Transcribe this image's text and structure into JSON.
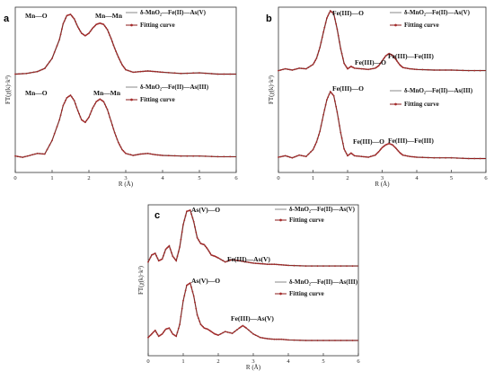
{
  "chart_data": [
    {
      "type": "line",
      "panel": "a",
      "xlabel": "R (Å)",
      "ylabel": "FT(χ(k)·k³)",
      "xlim": [
        0,
        6
      ],
      "xticks": [
        "0",
        "1",
        "2",
        "3",
        "4",
        "5",
        "6"
      ],
      "grid": false,
      "legend_position": "right",
      "curves": [
        {
          "legend": "δ-MnO₂—Fe(II)—As(V)",
          "annotations": [
            "Mn—O",
            "Mn—Mn"
          ],
          "x": [
            0,
            0.3,
            0.6,
            0.8,
            1.0,
            1.2,
            1.3,
            1.4,
            1.5,
            1.6,
            1.7,
            1.8,
            1.9,
            2.0,
            2.1,
            2.2,
            2.3,
            2.4,
            2.5,
            2.6,
            2.7,
            2.8,
            2.9,
            3.0,
            3.2,
            3.4,
            3.6,
            3.8,
            4.0,
            4.5,
            5.0,
            5.5,
            6.0
          ],
          "y": [
            0.05,
            0.06,
            0.09,
            0.14,
            0.3,
            0.6,
            0.85,
            0.98,
            1.0,
            0.93,
            0.8,
            0.7,
            0.66,
            0.7,
            0.78,
            0.84,
            0.86,
            0.84,
            0.76,
            0.62,
            0.46,
            0.32,
            0.2,
            0.12,
            0.08,
            0.09,
            0.1,
            0.09,
            0.08,
            0.06,
            0.07,
            0.05,
            0.05
          ]
        },
        {
          "legend": "δ-MnO₂—Fe(II)—As(III)",
          "annotations": [
            "Mn—O",
            "Mn—Mn"
          ],
          "x": [
            0,
            0.2,
            0.4,
            0.6,
            0.8,
            1.0,
            1.2,
            1.3,
            1.4,
            1.5,
            1.6,
            1.7,
            1.8,
            1.9,
            2.0,
            2.1,
            2.2,
            2.3,
            2.4,
            2.5,
            2.6,
            2.7,
            2.8,
            2.9,
            3.0,
            3.2,
            3.4,
            3.6,
            3.8,
            4.0,
            4.5,
            5.0,
            5.5,
            6.0
          ],
          "y": [
            0.06,
            0.04,
            0.07,
            0.1,
            0.09,
            0.3,
            0.62,
            0.84,
            0.96,
            1.0,
            0.92,
            0.76,
            0.62,
            0.58,
            0.66,
            0.8,
            0.9,
            0.94,
            0.9,
            0.78,
            0.6,
            0.42,
            0.27,
            0.16,
            0.1,
            0.07,
            0.09,
            0.1,
            0.08,
            0.07,
            0.06,
            0.06,
            0.05,
            0.05
          ]
        }
      ],
      "fit_legend": "Fitting curve"
    },
    {
      "type": "line",
      "panel": "b",
      "xlabel": "R (Å)",
      "ylabel": "FT(χ(k)·k³)",
      "xlim": [
        0,
        6
      ],
      "xticks": [
        "0",
        "1",
        "2",
        "3",
        "4",
        "5",
        "6"
      ],
      "grid": false,
      "legend_position": "top-right",
      "curves": [
        {
          "legend": "δ-MnO₂—Fe(II)—As(V)",
          "annotations": [
            "Fe(III)—O",
            "Fe(III)—O",
            "Fe(III)—Fe(III)"
          ],
          "x": [
            0,
            0.2,
            0.4,
            0.6,
            0.8,
            1.0,
            1.1,
            1.2,
            1.3,
            1.4,
            1.5,
            1.6,
            1.7,
            1.8,
            1.9,
            2.0,
            2.1,
            2.2,
            2.4,
            2.6,
            2.8,
            2.9,
            3.0,
            3.1,
            3.2,
            3.3,
            3.4,
            3.5,
            3.6,
            3.8,
            4.0,
            4.5,
            5.0,
            5.5,
            6.0
          ],
          "y": [
            0.02,
            0.05,
            0.03,
            0.06,
            0.05,
            0.12,
            0.22,
            0.4,
            0.65,
            0.88,
            1.0,
            0.95,
            0.7,
            0.38,
            0.14,
            0.05,
            0.09,
            0.06,
            0.05,
            0.04,
            0.06,
            0.1,
            0.18,
            0.26,
            0.3,
            0.27,
            0.2,
            0.12,
            0.07,
            0.05,
            0.04,
            0.03,
            0.03,
            0.02,
            0.02
          ]
        },
        {
          "legend": "δ-MnO₂—Fe(II)—As(III)",
          "annotations": [
            "Fe(III)—O",
            "Fe(III)—O",
            "Fe(III)—Fe(III)"
          ],
          "x": [
            0,
            0.2,
            0.4,
            0.6,
            0.8,
            1.0,
            1.1,
            1.2,
            1.3,
            1.4,
            1.5,
            1.6,
            1.7,
            1.8,
            1.9,
            2.0,
            2.1,
            2.2,
            2.4,
            2.6,
            2.8,
            2.9,
            3.0,
            3.1,
            3.2,
            3.3,
            3.4,
            3.5,
            3.6,
            3.8,
            4.0,
            4.5,
            5.0,
            5.5,
            6.0
          ],
          "y": [
            0.04,
            0.06,
            0.03,
            0.07,
            0.05,
            0.15,
            0.26,
            0.42,
            0.66,
            0.88,
            1.0,
            0.94,
            0.7,
            0.4,
            0.16,
            0.06,
            0.1,
            0.06,
            0.05,
            0.04,
            0.07,
            0.12,
            0.18,
            0.22,
            0.24,
            0.22,
            0.17,
            0.11,
            0.07,
            0.05,
            0.04,
            0.03,
            0.03,
            0.02,
            0.02
          ]
        }
      ],
      "fit_legend": "Fitting curve"
    },
    {
      "type": "line",
      "panel": "c",
      "xlabel": "R (Å)",
      "ylabel": "FT(χ(k)·k³)",
      "xlim": [
        0,
        6
      ],
      "xticks": [
        "0",
        "1",
        "2",
        "3",
        "4",
        "5",
        "6"
      ],
      "grid": false,
      "legend_position": "top-right",
      "curves": [
        {
          "legend": "δ-MnO₂—Fe(II)—As(V)",
          "annotations": [
            "As(V)—O",
            "Fe(III)—As(V)"
          ],
          "x": [
            0,
            0.1,
            0.2,
            0.3,
            0.4,
            0.5,
            0.6,
            0.7,
            0.8,
            0.9,
            1.0,
            1.1,
            1.2,
            1.3,
            1.4,
            1.5,
            1.6,
            1.7,
            1.8,
            1.9,
            2.0,
            2.2,
            2.4,
            2.6,
            2.8,
            3.0,
            3.2,
            3.4,
            3.6,
            3.8,
            4.0,
            4.5,
            5.0,
            5.5,
            6.0
          ],
          "y": [
            0.1,
            0.22,
            0.25,
            0.12,
            0.15,
            0.32,
            0.38,
            0.2,
            0.12,
            0.36,
            0.75,
            0.98,
            1.0,
            0.8,
            0.52,
            0.42,
            0.4,
            0.32,
            0.22,
            0.2,
            0.17,
            0.1,
            0.14,
            0.12,
            0.1,
            0.08,
            0.07,
            0.06,
            0.06,
            0.05,
            0.04,
            0.03,
            0.03,
            0.03,
            0.03
          ]
        },
        {
          "legend": "δ-MnO₂—Fe(II)—As(III)",
          "annotations": [
            "As(V)—O",
            "Fe(III)—As(V)"
          ],
          "x": [
            0,
            0.1,
            0.2,
            0.3,
            0.4,
            0.5,
            0.6,
            0.7,
            0.8,
            0.9,
            1.0,
            1.1,
            1.2,
            1.3,
            1.4,
            1.5,
            1.6,
            1.7,
            1.8,
            1.9,
            2.0,
            2.2,
            2.4,
            2.6,
            2.7,
            2.8,
            3.0,
            3.2,
            3.4,
            3.6,
            3.8,
            4.0,
            4.5,
            5.0,
            5.5,
            6.0
          ],
          "y": [
            0.08,
            0.14,
            0.2,
            0.1,
            0.14,
            0.22,
            0.24,
            0.14,
            0.1,
            0.3,
            0.7,
            0.96,
            1.0,
            0.78,
            0.46,
            0.3,
            0.24,
            0.22,
            0.18,
            0.14,
            0.12,
            0.18,
            0.15,
            0.24,
            0.28,
            0.24,
            0.14,
            0.08,
            0.06,
            0.05,
            0.05,
            0.04,
            0.03,
            0.03,
            0.03,
            0.03
          ]
        }
      ],
      "fit_legend": "Fitting curve"
    }
  ]
}
